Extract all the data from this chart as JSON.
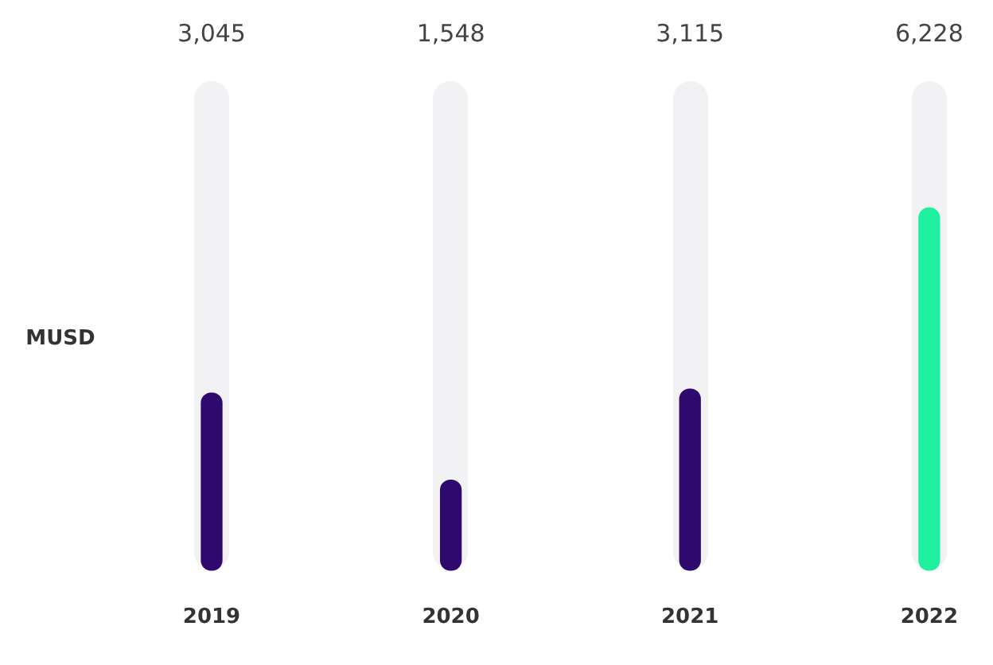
{
  "chart_data": {
    "type": "bar",
    "ylabel": "MUSD",
    "categories": [
      "2019",
      "2020",
      "2021",
      "2022"
    ],
    "values": [
      3045,
      1548,
      3115,
      6228
    ],
    "colors": [
      "#2e0a6e",
      "#2e0a6e",
      "#2e0a6e",
      "#1ef0a0"
    ],
    "value_labels": [
      "3,045",
      "1,548",
      "3,115",
      "6,228"
    ],
    "ylim": [
      0,
      8300
    ],
    "grid": false,
    "legend": false
  }
}
